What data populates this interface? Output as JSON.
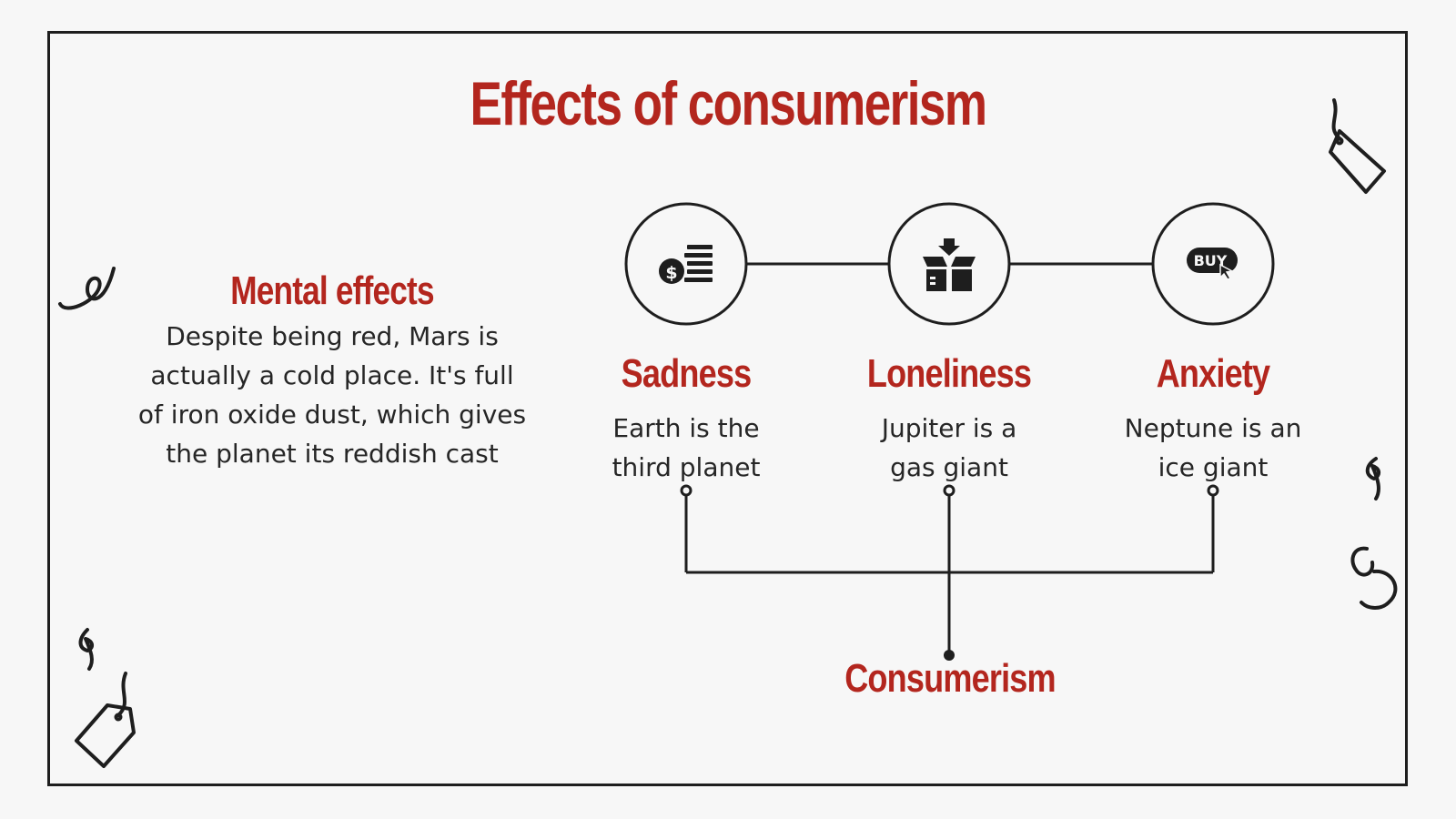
{
  "title": "Effects of consumerism",
  "mental": {
    "heading": "Mental effects",
    "body": "Despite being red, Mars is actually a cold place. It's full of iron oxide dust, which gives the planet its reddish cast"
  },
  "effects": [
    {
      "heading": "Sadness",
      "line1": "Earth is the",
      "line2": "third planet",
      "icon": "money-stack-icon"
    },
    {
      "heading": "Loneliness",
      "line1": "Jupiter is a",
      "line2": "gas giant",
      "icon": "package-box-icon"
    },
    {
      "heading": "Anxiety",
      "line1": "Neptune is an",
      "line2": "ice giant",
      "icon": "buy-button-icon"
    }
  ],
  "root": {
    "label": "Consumerism"
  },
  "icons": {
    "buy_text": "BUY"
  },
  "colors": {
    "accent": "#b3261e",
    "ink": "#1e1e1e",
    "background": "#f7f7f7"
  }
}
